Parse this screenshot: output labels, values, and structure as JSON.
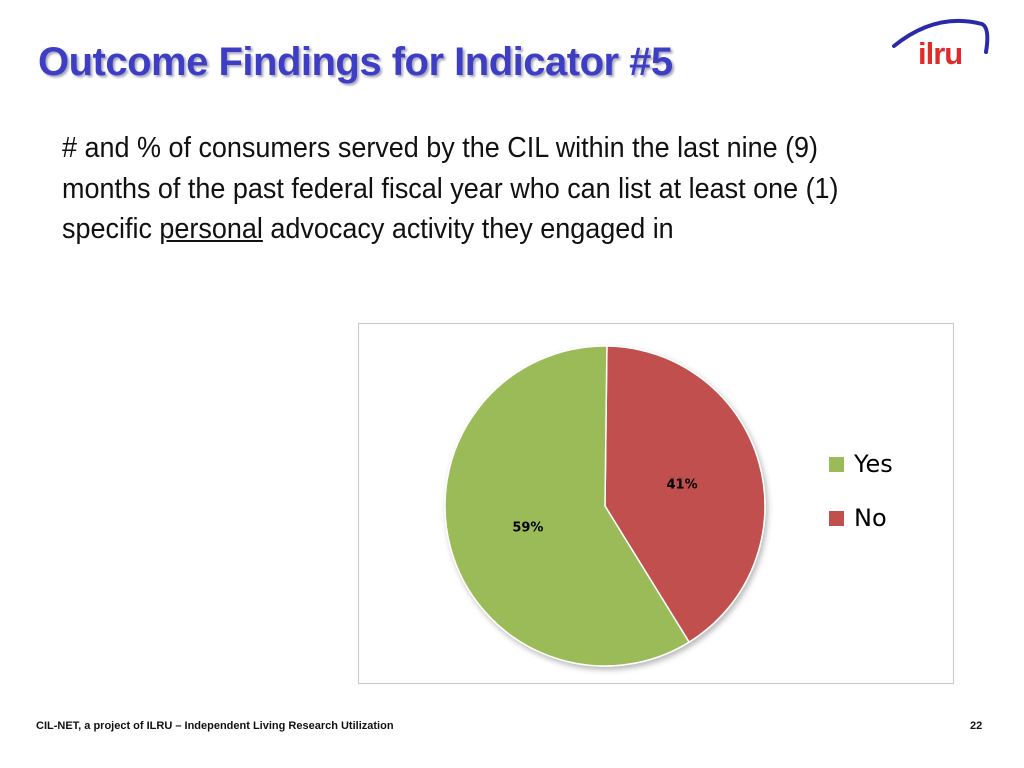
{
  "slide": {
    "title": "Outcome Findings for Indicator #5",
    "body_before": "# and % of consumers served by the CIL within the last nine (9) months of the past federal fiscal year who can list at least one (1) specific ",
    "body_underlined": "personal",
    "body_after": " advocacy activity they engaged in",
    "logo_text": "ilru",
    "footer_text": "CIL-NET, a project of ILRU – Independent Living Research Utilization",
    "page_number": "22"
  },
  "colors": {
    "title": "#3e3ec4",
    "logo_arc": "#2a2aa8",
    "logo_text": "#e12a2a"
  },
  "chart_data": {
    "type": "pie",
    "title": "",
    "legend_position": "right",
    "slices": [
      {
        "label": "No",
        "value": 41,
        "display": "41%",
        "color": "#c0504d"
      },
      {
        "label": "Yes",
        "value": 59,
        "display": "59%",
        "color": "#9bbb59"
      }
    ],
    "legend": [
      {
        "label": "Yes",
        "color": "#9bbb59"
      },
      {
        "label": "No",
        "color": "#c0504d"
      }
    ]
  }
}
